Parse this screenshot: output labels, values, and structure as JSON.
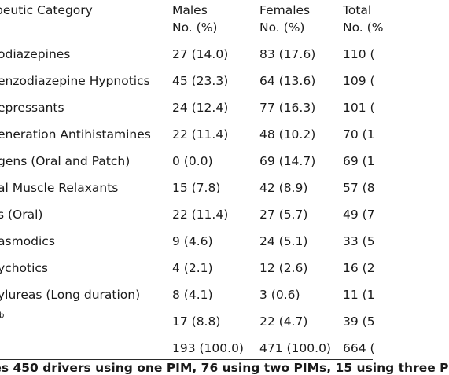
{
  "table": {
    "headers": {
      "category": "peutic Category",
      "males_line1": "Males",
      "males_line2": "No. (%)",
      "females_line1": "Females",
      "females_line2": "No. (%)",
      "total_line1": "Total",
      "total_line2": "No. (%"
    },
    "rows": [
      {
        "category": "odiazepines",
        "males": "27 (14.0)",
        "females": "83 (17.6)",
        "total": "110 ("
      },
      {
        "category": "enzodiazepine Hypnotics",
        "males": "45 (23.3)",
        "females": "64 (13.6)",
        "total": "109 ("
      },
      {
        "category": "epressants",
        "males": "24 (12.4)",
        "females": "77 (16.3)",
        "total": "101 ("
      },
      {
        "category": "eneration Antihistamines",
        "males": "22 (11.4)",
        "females": "48 (10.2)",
        "total": "70 (1"
      },
      {
        "category": "gens (Oral and Patch)",
        "males": "0 (0.0)",
        "females": "69 (14.7)",
        "total": "69 (1"
      },
      {
        "category": "al Muscle Relaxants",
        "males": "15 (7.8)",
        "females": "42 (8.9)",
        "total": "57 (8"
      },
      {
        "category": "s (Oral)",
        "males": "22 (11.4)",
        "females": "27 (5.7)",
        "total": "49 (7"
      },
      {
        "category": "asmodics",
        "males": "9 (4.6)",
        "females": "24 (5.1)",
        "total": "33 (5"
      },
      {
        "category": "ychotics",
        "males": "4 (2.1)",
        "females": "12 (2.6)",
        "total": "16 (2"
      },
      {
        "category": "ylureas (Long duration)",
        "males": "8 (4.1)",
        "females": "3 (0.6)",
        "total": "11 (1"
      },
      {
        "category": "b",
        "males": "17 (8.8)",
        "females": "22 (4.7)",
        "total": "39 (5"
      },
      {
        "category": "",
        "males": "193 (100.0)",
        "females": "471 (100.0)",
        "total": "664 ("
      }
    ]
  },
  "footnote": "ies 450 drivers using one PIM, 76 using two PIMs, 15 using three P"
}
